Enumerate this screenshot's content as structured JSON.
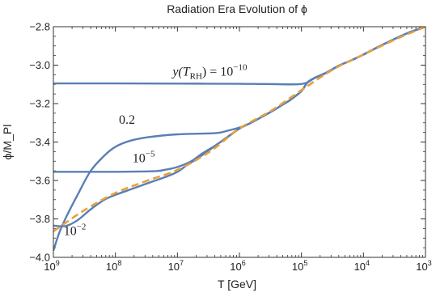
{
  "chart_data": {
    "type": "line",
    "title": "Radiation Era Evolution of ϕ",
    "xlabel": "T [GeV]",
    "ylabel": "ϕ/M_Pl",
    "x_scale": "log",
    "x_reversed": true,
    "xlim": [
      1000000000.0,
      1000.0
    ],
    "ylim": [
      -4.0,
      -2.8
    ],
    "x_ticks": [
      {
        "value": 1000000000.0,
        "base": "10",
        "exp": "9"
      },
      {
        "value": 100000000.0,
        "base": "10",
        "exp": "8"
      },
      {
        "value": 10000000.0,
        "base": "10",
        "exp": "7"
      },
      {
        "value": 1000000.0,
        "base": "10",
        "exp": "6"
      },
      {
        "value": 100000.0,
        "base": "10",
        "exp": "5"
      },
      {
        "value": 10000.0,
        "base": "10",
        "exp": "4"
      },
      {
        "value": 1000.0,
        "base": "10",
        "exp": "3"
      }
    ],
    "y_ticks": [
      {
        "value": -4.0,
        "label": "−4.0"
      },
      {
        "value": -3.8,
        "label": "−3.8"
      },
      {
        "value": -3.6,
        "label": "−3.6"
      },
      {
        "value": -3.4,
        "label": "−3.4"
      },
      {
        "value": -3.2,
        "label": "−3.2"
      },
      {
        "value": -3.0,
        "label": "−3.0"
      },
      {
        "value": -2.8,
        "label": "−2.8"
      }
    ],
    "grid": false,
    "legend": "none",
    "colors": {
      "curves": "#5b7fb4",
      "attractor": "#e8a13a",
      "frame": "#333333"
    },
    "series": [
      {
        "key": "y1e-10",
        "style": "solid",
        "points": [
          [
            1000000000.0,
            -3.095
          ],
          [
            100000000.0,
            -3.095
          ],
          [
            10000000.0,
            -3.096
          ],
          [
            1000000.0,
            -3.097
          ],
          [
            500000.0,
            -3.098
          ],
          [
            250000.0,
            -3.099
          ],
          [
            150000.0,
            -3.1
          ],
          [
            100000.0,
            -3.098
          ],
          [
            80000.0,
            -3.09
          ],
          [
            60000.0,
            -3.065
          ],
          [
            40000.0,
            -3.04
          ],
          [
            25000.0,
            -3.003
          ],
          [
            15000.0,
            -2.972
          ],
          [
            10000.0,
            -2.945
          ],
          [
            5000.0,
            -2.895
          ],
          [
            2000.0,
            -2.835
          ],
          [
            1000.0,
            -2.8
          ]
        ]
      },
      {
        "key": "y0.2",
        "style": "solid",
        "points": [
          [
            1000000000.0,
            -3.965
          ],
          [
            800000000.0,
            -3.87
          ],
          [
            600000000.0,
            -3.78
          ],
          [
            400000000.0,
            -3.67
          ],
          [
            250000000.0,
            -3.55
          ],
          [
            150000000.0,
            -3.47
          ],
          [
            100000000.0,
            -3.425
          ],
          [
            60000000.0,
            -3.395
          ],
          [
            30000000.0,
            -3.375
          ],
          [
            10000000.0,
            -3.36
          ],
          [
            3000000.0,
            -3.355
          ],
          [
            2000000.0,
            -3.35
          ],
          [
            1500000.0,
            -3.34
          ],
          [
            1000000.0,
            -3.325
          ],
          [
            700000.0,
            -3.305
          ],
          [
            500000.0,
            -3.28
          ],
          [
            300000.0,
            -3.24
          ],
          [
            200000.0,
            -3.205
          ],
          [
            150000.0,
            -3.18
          ],
          [
            100000.0,
            -3.135
          ],
          [
            80000.0,
            -3.09
          ],
          [
            60000.0,
            -3.065
          ],
          [
            40000.0,
            -3.04
          ],
          [
            25000.0,
            -3.003
          ],
          [
            15000.0,
            -2.972
          ],
          [
            10000.0,
            -2.945
          ],
          [
            5000.0,
            -2.895
          ],
          [
            2000.0,
            -2.835
          ],
          [
            1000.0,
            -2.8
          ]
        ]
      },
      {
        "key": "y1e-5",
        "style": "solid",
        "points": [
          [
            1000000000.0,
            -3.555
          ],
          [
            100000000.0,
            -3.555
          ],
          [
            30000000.0,
            -3.553
          ],
          [
            20000000.0,
            -3.55
          ],
          [
            15000000.0,
            -3.543
          ],
          [
            10000000.0,
            -3.53
          ],
          [
            6000000.0,
            -3.5
          ],
          [
            4000000.0,
            -3.46
          ],
          [
            2500000.0,
            -3.42
          ],
          [
            1500000.0,
            -3.37
          ],
          [
            1000000.0,
            -3.33
          ],
          [
            700000.0,
            -3.305
          ],
          [
            500000.0,
            -3.28
          ],
          [
            300000.0,
            -3.24
          ],
          [
            200000.0,
            -3.205
          ],
          [
            150000.0,
            -3.18
          ],
          [
            100000.0,
            -3.135
          ],
          [
            80000.0,
            -3.09
          ],
          [
            60000.0,
            -3.065
          ],
          [
            40000.0,
            -3.04
          ],
          [
            25000.0,
            -3.003
          ],
          [
            15000.0,
            -2.972
          ],
          [
            10000.0,
            -2.945
          ],
          [
            5000.0,
            -2.895
          ],
          [
            2000.0,
            -2.835
          ],
          [
            1000.0,
            -2.8
          ]
        ]
      },
      {
        "key": "y1e-2",
        "style": "solid",
        "points": [
          [
            1000000000.0,
            -3.835
          ],
          [
            800000000.0,
            -3.838
          ],
          [
            600000000.0,
            -3.835
          ],
          [
            400000000.0,
            -3.805
          ],
          [
            250000000.0,
            -3.75
          ],
          [
            150000000.0,
            -3.7
          ],
          [
            100000000.0,
            -3.675
          ],
          [
            50000000.0,
            -3.64
          ],
          [
            25000000.0,
            -3.605
          ],
          [
            15000000.0,
            -3.58
          ],
          [
            10000000.0,
            -3.555
          ],
          [
            7000000.0,
            -3.52
          ],
          [
            5000000.0,
            -3.49
          ],
          [
            3000000.0,
            -3.44
          ],
          [
            1500000.0,
            -3.37
          ],
          [
            1000000.0,
            -3.33
          ],
          [
            700000.0,
            -3.305
          ],
          [
            500000.0,
            -3.28
          ],
          [
            300000.0,
            -3.24
          ],
          [
            200000.0,
            -3.205
          ],
          [
            150000.0,
            -3.18
          ],
          [
            100000.0,
            -3.135
          ],
          [
            80000.0,
            -3.09
          ],
          [
            60000.0,
            -3.065
          ],
          [
            40000.0,
            -3.04
          ],
          [
            25000.0,
            -3.003
          ],
          [
            15000.0,
            -2.972
          ],
          [
            10000.0,
            -2.945
          ],
          [
            5000.0,
            -2.895
          ],
          [
            2000.0,
            -2.835
          ],
          [
            1000.0,
            -2.8
          ]
        ]
      },
      {
        "key": "attractor",
        "style": "dashed",
        "points": [
          [
            1000000000.0,
            -3.865
          ],
          [
            600000000.0,
            -3.815
          ],
          [
            300000000.0,
            -3.75
          ],
          [
            100000000.0,
            -3.665
          ],
          [
            30000000.0,
            -3.6
          ],
          [
            10000000.0,
            -3.545
          ],
          [
            3000000.0,
            -3.45
          ],
          [
            1000000.0,
            -3.33
          ],
          [
            300000.0,
            -3.235
          ],
          [
            100000.0,
            -3.13
          ],
          [
            30000.0,
            -3.02
          ],
          [
            10000.0,
            -2.945
          ],
          [
            3000.0,
            -2.865
          ],
          [
            1000.0,
            -2.8
          ]
        ]
      }
    ],
    "annotations": [
      {
        "key": "a1",
        "pre": "y(T",
        "sub": "RH",
        "mid": ") = 10",
        "sup": "−10",
        "x": 3000000.0,
        "y": -3.055
      },
      {
        "key": "a2",
        "text": "0.2",
        "x": 65000000.0,
        "y": -3.305
      },
      {
        "key": "a3",
        "pre": "10",
        "sup": "−5",
        "x": 35000000.0,
        "y": -3.505
      },
      {
        "key": "a4",
        "pre": "10",
        "sup": "−2",
        "x": 450000000.0,
        "y": -3.885
      }
    ]
  }
}
